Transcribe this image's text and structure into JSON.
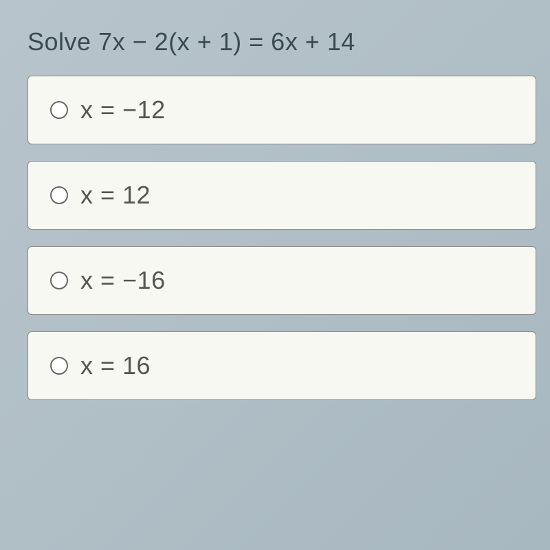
{
  "question": {
    "prompt": "Solve 7x − 2(x + 1) = 6x + 14",
    "fontsize": 36,
    "color": "#3a4a52"
  },
  "options": [
    {
      "label": "x = −12"
    },
    {
      "label": "x = 12"
    },
    {
      "label": "x = −16"
    },
    {
      "label": "x = 16"
    }
  ],
  "styles": {
    "option_bg": "#f8f8f2",
    "option_border": "#888888",
    "radio_border": "#666666",
    "option_text_color": "#555555",
    "body_bg_start": "#b8c4cc",
    "body_bg_end": "#a8b8c0"
  }
}
